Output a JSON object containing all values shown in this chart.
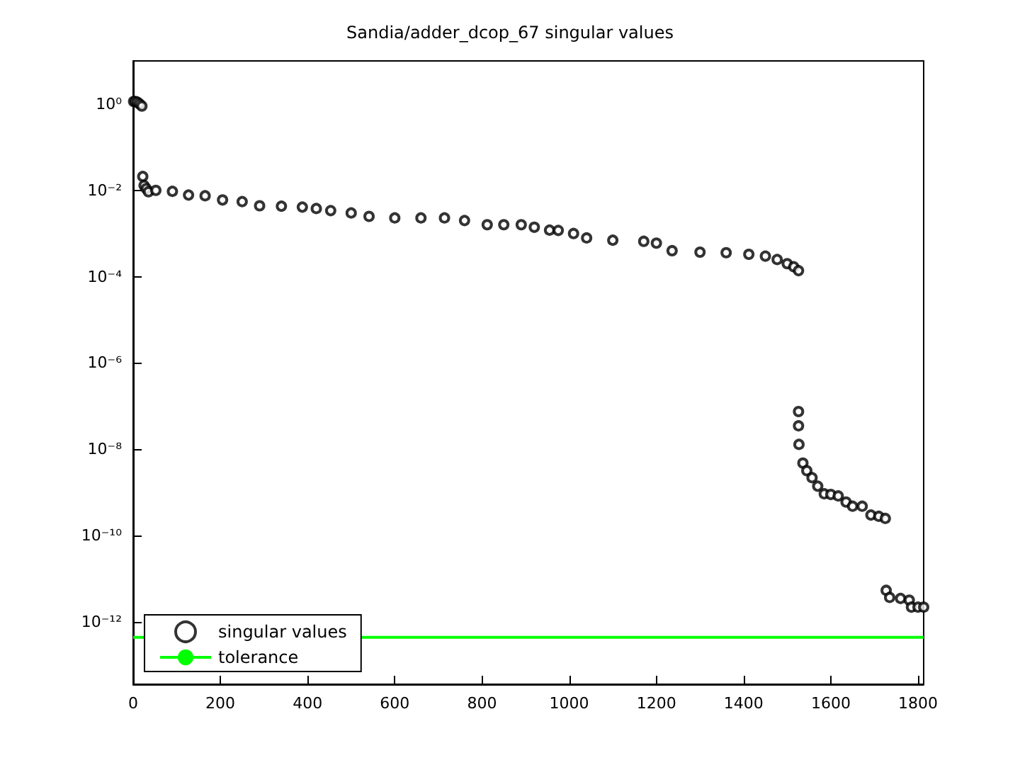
{
  "chart_data": {
    "type": "scatter",
    "title": "Sandia/adder_dcop_67 singular values",
    "log": "y",
    "xlim": [
      0,
      1813
    ],
    "xticks": [
      0,
      200,
      400,
      600,
      800,
      1000,
      1200,
      1400,
      1600,
      1800
    ],
    "ylim": [
      3.6e-14,
      10
    ],
    "yticks": [
      {
        "value": 1,
        "label": "10⁰"
      },
      {
        "value": 0.01,
        "label": "10⁻²"
      },
      {
        "value": 0.0001,
        "label": "10⁻⁴"
      },
      {
        "value": 1e-06,
        "label": "10⁻⁶"
      },
      {
        "value": 1e-08,
        "label": "10⁻⁸"
      },
      {
        "value": 1e-10,
        "label": "10⁻¹⁰"
      },
      {
        "value": 1e-12,
        "label": "10⁻¹²"
      }
    ],
    "grid": false,
    "legend": "bottom left",
    "series": [
      {
        "name": "singular values",
        "marker": "circle",
        "color": "#000000",
        "x": [
          1,
          5,
          10,
          15,
          20,
          22,
          25,
          30,
          35,
          52,
          90,
          127,
          165,
          205,
          250,
          290,
          340,
          388,
          420,
          453,
          500,
          541,
          600,
          660,
          714,
          760,
          812,
          850,
          890,
          920,
          955,
          975,
          1010,
          1040,
          1100,
          1171,
          1200,
          1236,
          1300,
          1360,
          1412,
          1450,
          1477,
          1500,
          1515,
          1526,
          1526,
          1526,
          1527,
          1536,
          1545,
          1557,
          1570,
          1585,
          1600,
          1617,
          1635,
          1650,
          1672,
          1692,
          1710,
          1725,
          1727,
          1735,
          1760,
          1780,
          1785,
          1800,
          1813
        ],
        "values": [
          1.15,
          1.15,
          1.1,
          1.0,
          0.9,
          0.021,
          0.013,
          0.011,
          0.0093,
          0.01,
          0.0095,
          0.0078,
          0.0075,
          0.006,
          0.0055,
          0.0044,
          0.0043,
          0.0041,
          0.0038,
          0.0034,
          0.003,
          0.0025,
          0.0023,
          0.0023,
          0.0023,
          0.002,
          0.0016,
          0.0016,
          0.0016,
          0.0014,
          0.0012,
          0.00118,
          0.001,
          0.00079,
          0.0007,
          0.00066,
          0.0006,
          0.0004,
          0.00037,
          0.00036,
          0.00033,
          0.0003,
          0.00025,
          0.0002,
          0.00017,
          0.000138,
          7.5e-08,
          3.5e-08,
          1.3e-08,
          4.8e-09,
          3.2e-09,
          2.2e-09,
          1.4e-09,
          9.3e-10,
          9e-10,
          8.3e-10,
          6e-10,
          4.8e-10,
          4.8e-10,
          3e-10,
          2.8e-10,
          2.5e-10,
          5.4e-12,
          3.7e-12,
          3.5e-12,
          3.2e-12,
          2.2e-12,
          2.2e-12,
          2.2e-12
        ]
      },
      {
        "name": "tolerance",
        "type": "line",
        "marker": "none",
        "color": "#00ff00",
        "line_style": "solid",
        "x": [
          0,
          1813
        ],
        "values": [
          4.4e-13,
          4.4e-13
        ]
      }
    ]
  }
}
